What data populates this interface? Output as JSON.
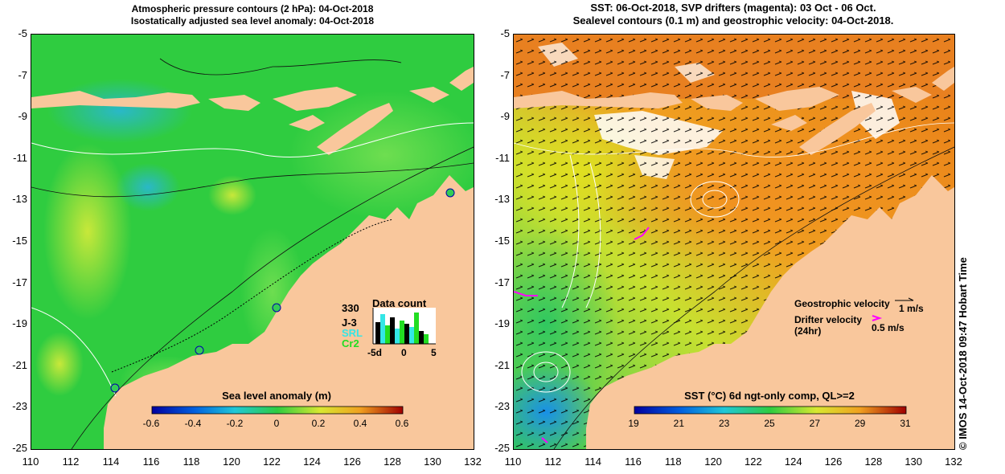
{
  "left_panel": {
    "title_line1": "Atmospheric pressure contours (2 hPa): 04-Oct-2018",
    "title_line2": "Isostatically adjusted sea level anomaly: 04-Oct-2018",
    "colorbar_label": "Sea level anomaly (m)",
    "colorbar_ticks": [
      "-0.6",
      "-0.4",
      "-0.2",
      "0",
      "0.2",
      "0.4",
      "0.6"
    ],
    "colorbar_range": [
      -0.6,
      0.6
    ],
    "data_count": {
      "title": "Data count",
      "max_label": "330",
      "legend": [
        {
          "label": "J-3",
          "color": "#000000"
        },
        {
          "label": "SRL",
          "color": "#33e6e6"
        },
        {
          "label": "Cr2",
          "color": "#22dd22"
        }
      ],
      "x_ticks": [
        "-5d",
        "0",
        "5"
      ]
    }
  },
  "right_panel": {
    "title_line1": "SST: 06-Oct-2018, SVP drifters (magenta): 03 Oct - 06 Oct.",
    "title_line2": "Sealevel contours (0.1 m) and geostrophic velocity: 04-Oct-2018.",
    "colorbar_label": "SST (°C) 6d ngt-only comp, QL>=2",
    "colorbar_ticks": [
      "19",
      "21",
      "23",
      "25",
      "27",
      "29",
      "31"
    ],
    "colorbar_range": [
      19,
      31
    ],
    "geostrophic_label": "Geostrophic velocity",
    "geostrophic_scale": "1 m/s",
    "drifter_label_line1": "Drifter velocity",
    "drifter_label_line2": "(24hr)",
    "drifter_scale": "0.5 m/s"
  },
  "axes": {
    "y_ticks": [
      "-5",
      "-7",
      "-9",
      "-11",
      "-13",
      "-15",
      "-17",
      "-19",
      "-21",
      "-23",
      "-25"
    ],
    "x_ticks": [
      "110",
      "112",
      "114",
      "116",
      "118",
      "120",
      "122",
      "124",
      "126",
      "128",
      "130",
      "132"
    ],
    "lat_range": [
      -25,
      -5
    ],
    "lon_range": [
      110,
      132
    ]
  },
  "side_text": "© IMOS 14-Oct-2018 09:47 Hobart Time",
  "colors": {
    "land": "#f9c79c",
    "sla_base": "#2fcc40",
    "sst_warm": "#f08c1c",
    "drifter": "#ff00ff"
  }
}
